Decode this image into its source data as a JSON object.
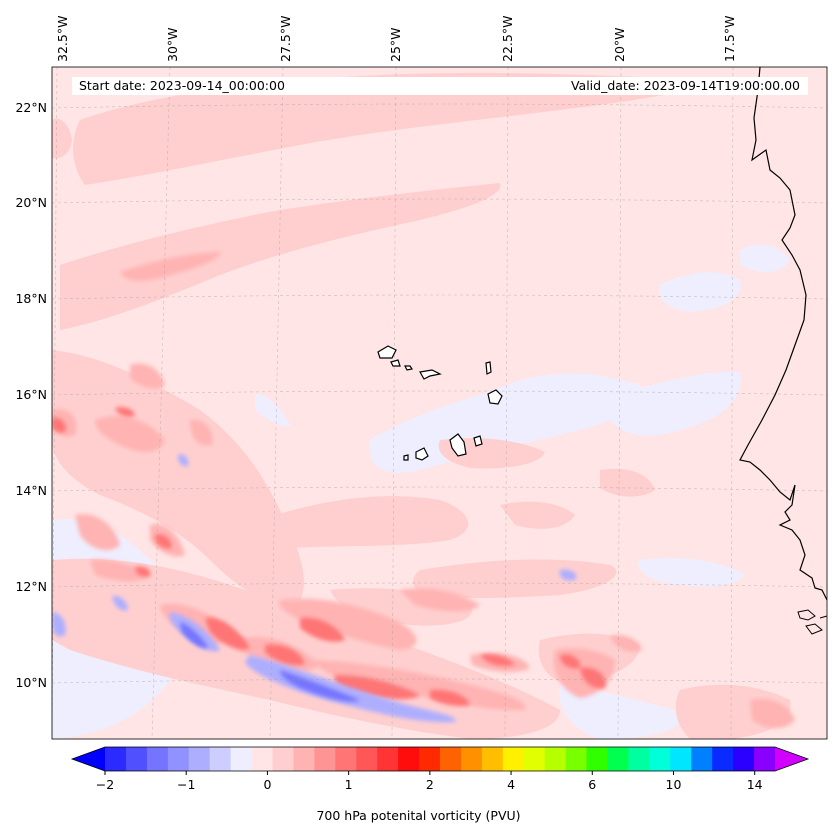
{
  "header": {
    "start_date": "Start date: 2023-09-14_00:00:00",
    "valid_date": "Valid_date: 2023-09-14T19:00:00.00"
  },
  "map": {
    "lon_labels": [
      "32.5°W",
      "30°W",
      "27.5°W",
      "25°W",
      "22.5°W",
      "20°W",
      "17.5°W"
    ],
    "lat_labels": [
      "22°N",
      "20°N",
      "18°N",
      "16°N",
      "14°N",
      "12°N",
      "10°N"
    ],
    "extent": {
      "lon_min": -32.7,
      "lon_max": -15.3,
      "lat_min": 8.9,
      "lat_max": 22.8
    },
    "icons": [
      "coastline-africa",
      "cape-verde-islands"
    ]
  },
  "colorbar": {
    "label": "700 hPa potenital vorticity (PVU)",
    "tick_labels": [
      "−2",
      "−1",
      "0",
      "1",
      "2",
      "4",
      "6",
      "10",
      "14"
    ],
    "tick_index": [
      0,
      4,
      8,
      12,
      16,
      20,
      24,
      28,
      32
    ],
    "colors": [
      "#0000ff",
      "#2b2bff",
      "#5050ff",
      "#7474ff",
      "#9191ff",
      "#aeaeff",
      "#cdcdff",
      "#eeeeff",
      "#ffe5e5",
      "#ffcfcf",
      "#ffb3b3",
      "#ff9494",
      "#ff7474",
      "#ff5757",
      "#ff3434",
      "#ff0d0d",
      "#ff2a00",
      "#ff6200",
      "#ff9000",
      "#ffbf00",
      "#fff000",
      "#e2ff00",
      "#b6ff00",
      "#78ff00",
      "#30ff00",
      "#00ff4f",
      "#00ffa0",
      "#00ffd9",
      "#00e6ff",
      "#007fff",
      "#0a2bff",
      "#2b00ff",
      "#8a00ff",
      "#d200ff"
    ]
  }
}
